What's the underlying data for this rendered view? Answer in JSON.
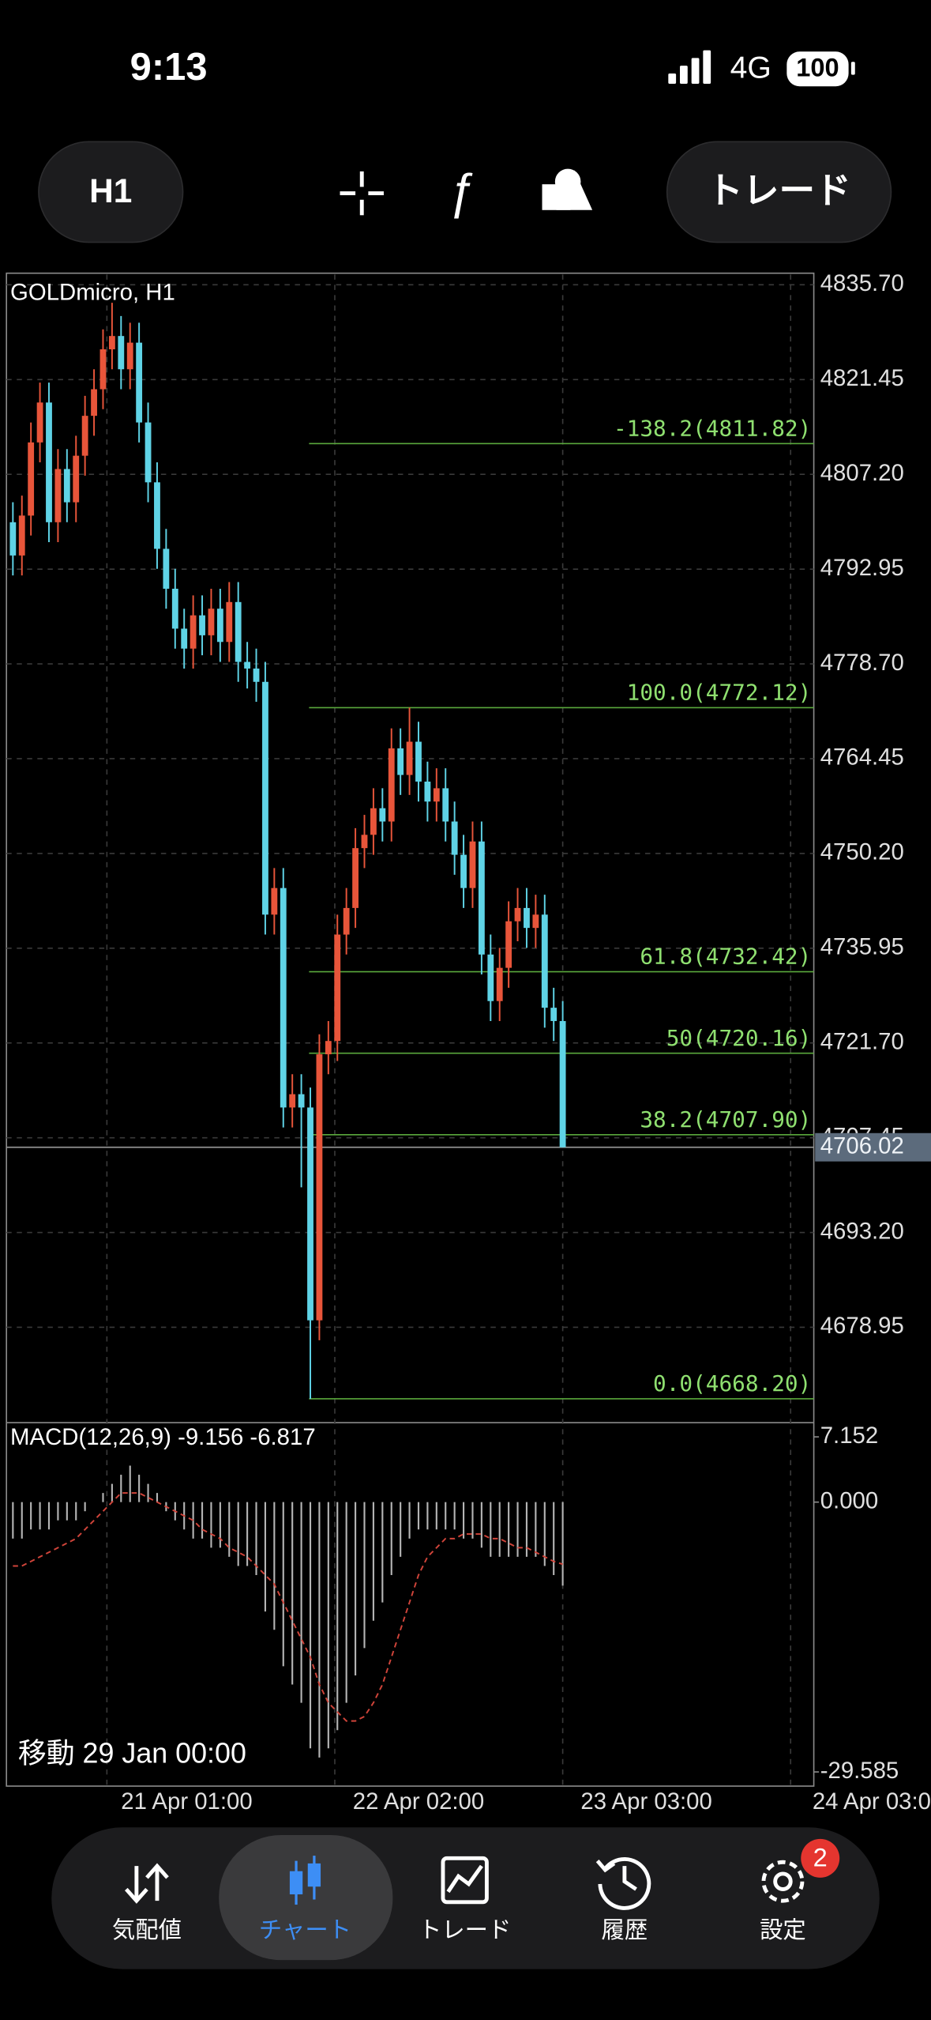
{
  "status_bar": {
    "time": "9:13",
    "network": "4G",
    "battery": "100"
  },
  "toolbar": {
    "timeframe": "H1",
    "trade_button": "トレード"
  },
  "chart_data": [
    {
      "type": "candlestick",
      "title": "GOLDmicro, H1",
      "open": [
        4800,
        4795,
        4801,
        4812,
        4818,
        4800,
        4808,
        4803,
        4810,
        4816,
        4820,
        4826,
        4828,
        4823,
        4827,
        4815,
        4806,
        4796,
        4790,
        4784,
        4781,
        4786,
        4783,
        4787,
        4782,
        4788,
        4779,
        4778,
        4776,
        4741,
        4745,
        4712,
        4714,
        4712,
        4680,
        4720,
        4722,
        4738,
        4742,
        4751,
        4753,
        4757,
        4755,
        4766,
        4762,
        4767,
        4761,
        4758,
        4760,
        4755,
        4750,
        4745,
        4752,
        4735,
        4728,
        4733,
        4740,
        4742,
        4739,
        4741,
        4727,
        4725
      ],
      "high": [
        4803,
        4804,
        4815,
        4821,
        4821,
        4811,
        4811,
        4813,
        4819,
        4823,
        4829,
        4833,
        4831,
        4830,
        4830,
        4818,
        4809,
        4799,
        4793,
        4787,
        4789,
        4789,
        4790,
        4790,
        4791,
        4791,
        4782,
        4781,
        4779,
        4748,
        4748,
        4717,
        4717,
        4715,
        4723,
        4725,
        4741,
        4745,
        4754,
        4756,
        4760,
        4760,
        4769,
        4769,
        4772.12,
        4770,
        4764,
        4763,
        4763,
        4758,
        4753,
        4755,
        4755,
        4738,
        4736,
        4743,
        4745,
        4745,
        4744,
        4744,
        4730,
        4728
      ],
      "low": [
        4792,
        4792,
        4798,
        4809,
        4797,
        4797,
        4800,
        4800,
        4807,
        4813,
        4817,
        4823,
        4820,
        4820,
        4812,
        4803,
        4793,
        4787,
        4781,
        4778,
        4778,
        4780,
        4780,
        4779,
        4779,
        4776,
        4775,
        4773,
        4738,
        4738,
        4709,
        4709,
        4700,
        4668.2,
        4677,
        4717,
        4719,
        4735,
        4739,
        4748,
        4750,
        4752,
        4752,
        4759,
        4759,
        4758,
        4755,
        4755,
        4752,
        4747,
        4742,
        4742,
        4732,
        4725,
        4725,
        4730,
        4737,
        4736,
        4736,
        4724,
        4722,
        4706
      ],
      "close": [
        4795,
        4801,
        4812,
        4818,
        4800,
        4808,
        4803,
        4810,
        4816,
        4820,
        4826,
        4828,
        4823,
        4827,
        4815,
        4806,
        4796,
        4790,
        4784,
        4781,
        4786,
        4783,
        4787,
        4782,
        4788,
        4779,
        4778,
        4776,
        4741,
        4745,
        4712,
        4714,
        4712,
        4680,
        4720,
        4722,
        4738,
        4742,
        4751,
        4753,
        4757,
        4755,
        4766,
        4762,
        4767,
        4761,
        4758,
        4760,
        4755,
        4750,
        4745,
        4752,
        4735,
        4728,
        4733,
        4740,
        4742,
        4739,
        4741,
        4727,
        4725,
        4706.02
      ],
      "up_color": "#e8553a",
      "down_color": "#5fd3e6",
      "ylim": [
        4664.8,
        4837.25
      ],
      "yticks": [
        {
          "value": 4835.7,
          "label": "4835.70"
        },
        4821.45,
        {
          "value": 4807.2,
          "label": "4807.20"
        },
        4792.95,
        {
          "value": 4778.7,
          "label": "4778.70"
        },
        4764.45,
        {
          "value": 4750.2,
          "label": "4750.20"
        },
        4735.95,
        {
          "value": 4721.7,
          "label": "4721.70"
        },
        4707.45,
        {
          "value": 4693.2,
          "label": "4693.20"
        },
        4678.95
      ],
      "grid": true,
      "current_price": 4706.02,
      "fibonacci": [
        {
          "label": "-138.2(4811.82)",
          "value": 4811.82
        },
        {
          "label": "100.0(4772.12)",
          "value": 4772.12
        },
        {
          "label": "61.8(4732.42)",
          "value": 4732.42
        },
        {
          "label": "50(4720.16)",
          "value": 4720.16
        },
        {
          "label": "38.2(4707.90)",
          "value": 4707.9
        },
        {
          "label": "0.0(4668.20)",
          "value": 4668.2
        }
      ],
      "x_labels": [
        "21 Apr 01:00",
        "22 Apr 02:00",
        "23 Apr 03:00",
        "24 Apr 03:0"
      ],
      "scroll_label": "移動 29 Jan 00:00"
    },
    {
      "type": "macd",
      "label": "MACD(12,26,9)",
      "macd_value": -9.156,
      "signal_value": -6.817,
      "histogram": [
        -4,
        -4,
        -3,
        -3,
        -3,
        -2,
        -2,
        -2,
        -1,
        0,
        1,
        2,
        3,
        4,
        3,
        2,
        1,
        -1,
        -2,
        -3,
        -4,
        -4,
        -5,
        -5,
        -6,
        -7,
        -7,
        -8,
        -12,
        -14,
        -18,
        -20,
        -22,
        -27,
        -28,
        -27,
        -25,
        -22,
        -19,
        -16,
        -13,
        -11,
        -8,
        -6,
        -4,
        -3,
        -3,
        -3,
        -3,
        -3,
        -4,
        -4,
        -5,
        -6,
        -6,
        -6,
        -6,
        -6,
        -6,
        -7,
        -8,
        -9.156
      ],
      "signal": [
        -7,
        -7,
        -6.5,
        -6,
        -5.5,
        -5,
        -4.5,
        -4,
        -3,
        -2,
        -1,
        0,
        1,
        1,
        1,
        0.5,
        0,
        -0.5,
        -1,
        -1.5,
        -2,
        -3,
        -3.5,
        -4,
        -5,
        -5.5,
        -6,
        -7,
        -8,
        -9,
        -11,
        -13,
        -15,
        -17,
        -20,
        -22,
        -23,
        -24,
        -24,
        -23.5,
        -22,
        -20,
        -17,
        -14,
        -11,
        -8,
        -6,
        -5,
        -4,
        -4,
        -3.5,
        -3.5,
        -3.5,
        -4,
        -4,
        -4.5,
        -5,
        -5,
        -5.5,
        -6,
        -6.5,
        -6.817
      ],
      "histogram_color": "#b5b5b5",
      "signal_color": "#d0443a",
      "ylim": [
        -29.585,
        7.152
      ],
      "yticks": [
        7.152,
        {
          "value": 0,
          "label": "0.000"
        },
        -29.585
      ]
    }
  ],
  "nav": {
    "items": [
      "気配値",
      "チャート",
      "トレード",
      "履歴",
      "設定"
    ],
    "badge": 2
  }
}
